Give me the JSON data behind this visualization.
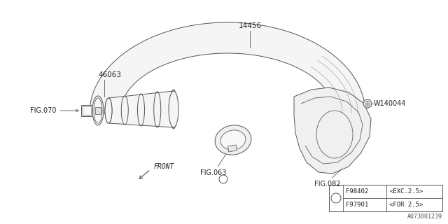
{
  "background_color": "#ffffff",
  "line_color": "#555555",
  "text_color": "#222222",
  "label_14456": "14456",
  "label_46063": "46063",
  "label_fig070": "FIG.070",
  "label_fig063": "FIG.063",
  "label_fig082": "FIG.082",
  "label_w140044": "W140044",
  "label_front": "FRONT",
  "label_part1": "F98402",
  "label_part1_desc": "<EXC.2.5>",
  "label_part2": "F97901",
  "label_part2_desc": "<FOR 2.5>",
  "label_diagram_id": "A073001239"
}
